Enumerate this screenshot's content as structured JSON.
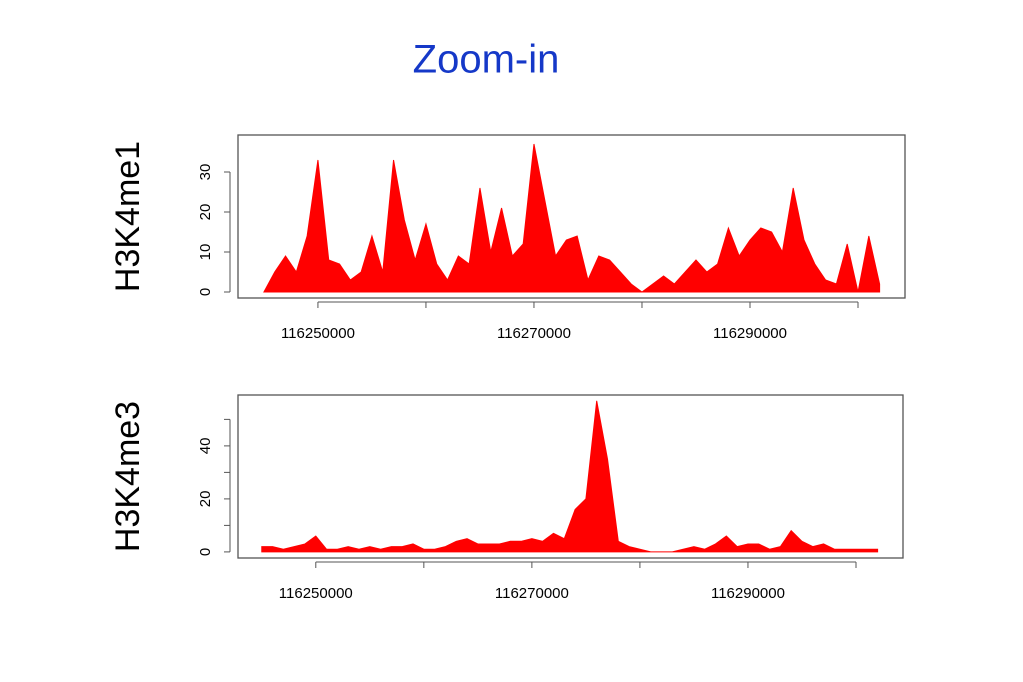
{
  "title": "Zoom-in",
  "chart_data": [
    {
      "type": "area",
      "ylabel": "H3K4me1",
      "color": "#ff0000",
      "x": [
        116245000,
        116246000,
        116247000,
        116248000,
        116249000,
        116250000,
        116251000,
        116252000,
        116253000,
        116254000,
        116255000,
        116256000,
        116257000,
        116258000,
        116259000,
        116260000,
        116261000,
        116262000,
        116263000,
        116264000,
        116265000,
        116266000,
        116267000,
        116268000,
        116269000,
        116270000,
        116271000,
        116272000,
        116273000,
        116274000,
        116275000,
        116276000,
        116277000,
        116278000,
        116279000,
        116280000,
        116281000,
        116282000,
        116283000,
        116284000,
        116285000,
        116286000,
        116287000,
        116288000,
        116289000,
        116290000,
        116291000,
        116292000,
        116293000,
        116294000,
        116295000,
        116296000,
        116297000,
        116298000,
        116299000,
        116300000,
        116301000,
        116302000
      ],
      "values": [
        0,
        5,
        9,
        5,
        14,
        33,
        8,
        7,
        3,
        5,
        14,
        5,
        33,
        18,
        8,
        17,
        7,
        3,
        9,
        7,
        26,
        10,
        21,
        9,
        12,
        37,
        23,
        9,
        13,
        14,
        3,
        9,
        8,
        5,
        2,
        0,
        2,
        4,
        2,
        5,
        8,
        5,
        7,
        16,
        9,
        13,
        16,
        15,
        10,
        26,
        13,
        7,
        3,
        2,
        12,
        0,
        14,
        2
      ],
      "xlim": [
        116242600,
        116304350
      ],
      "ylim": [
        -1.5,
        39.25
      ],
      "xticks": [
        116250000,
        116270000,
        116290000
      ],
      "xminorticks": [
        116260000,
        116280000,
        116300000
      ],
      "yticks": [
        0,
        10,
        20,
        30
      ]
    },
    {
      "type": "area",
      "ylabel": "H3K4me3",
      "color": "#ff0000",
      "x": [
        116245000,
        116246000,
        116247000,
        116248000,
        116249000,
        116250000,
        116251000,
        116252000,
        116253000,
        116254000,
        116255000,
        116256000,
        116257000,
        116258000,
        116259000,
        116260000,
        116261000,
        116262000,
        116263000,
        116264000,
        116265000,
        116266000,
        116267000,
        116268000,
        116269000,
        116270000,
        116271000,
        116272000,
        116273000,
        116274000,
        116275000,
        116276000,
        116277000,
        116278000,
        116279000,
        116280000,
        116281000,
        116282000,
        116283000,
        116284000,
        116285000,
        116286000,
        116287000,
        116288000,
        116289000,
        116290000,
        116291000,
        116292000,
        116293000,
        116294000,
        116295000,
        116296000,
        116297000,
        116298000,
        116299000,
        116300000,
        116301000,
        116302000
      ],
      "values": [
        2,
        2,
        1,
        2,
        3,
        6,
        1,
        1,
        2,
        1,
        2,
        1,
        2,
        2,
        3,
        1,
        1,
        2,
        4,
        5,
        3,
        3,
        3,
        4,
        4,
        5,
        4,
        7,
        5,
        16,
        20,
        57,
        35,
        4,
        2,
        1,
        0,
        0,
        0,
        1,
        2,
        1,
        3,
        6,
        2,
        3,
        3,
        1,
        2,
        8,
        4,
        2,
        3,
        1,
        1,
        1,
        1,
        1
      ],
      "xlim": [
        116242800,
        116304350
      ],
      "ylim": [
        -2.3,
        59.2
      ],
      "xticks": [
        116250000,
        116270000,
        116290000
      ],
      "xminorticks": [
        116260000,
        116280000,
        116300000
      ],
      "yticks": [
        0,
        20,
        40
      ],
      "yminorticks": [
        10,
        30,
        50
      ]
    }
  ]
}
